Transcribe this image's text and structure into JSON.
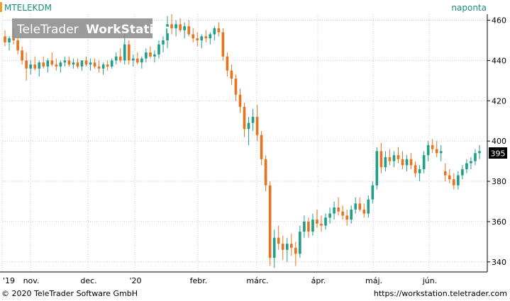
{
  "symbol": "MTELEKDM",
  "period_label": "naponta",
  "watermark": "TeleTrader WorkStation",
  "watermark_parts": [
    "TeleTrader",
    "WorkStation"
  ],
  "last_price_label": "395",
  "footer": {
    "copyright": "© 2020 TeleTrader Software GmbH",
    "url": "https://workstation.teletrader.com"
  },
  "colors": {
    "up": "#1f9e89",
    "down": "#e8731e",
    "grid": "#c9c9c9",
    "symbol_text": "#1a8f7a",
    "accent_bar": "#f0a020"
  },
  "chart_data": {
    "type": "candlestick",
    "x_tick_labels": [
      "'19",
      "nov.",
      "dec.",
      "'20",
      "febr.",
      "márc.",
      "ápr.",
      "máj.",
      "jún."
    ],
    "y_ticks": [
      340,
      360,
      380,
      400,
      420,
      440,
      460
    ],
    "ylim": [
      335,
      463
    ],
    "grid": true,
    "candles": [
      [
        452,
        455,
        447,
        449
      ],
      [
        449,
        452,
        445,
        451
      ],
      [
        451,
        456,
        448,
        450
      ],
      [
        450,
        451,
        443,
        445
      ],
      [
        445,
        447,
        438,
        440
      ],
      [
        440,
        444,
        430,
        436
      ],
      [
        436,
        440,
        433,
        438
      ],
      [
        438,
        442,
        435,
        436
      ],
      [
        436,
        440,
        432,
        439
      ],
      [
        439,
        442,
        436,
        437
      ],
      [
        437,
        441,
        434,
        440
      ],
      [
        440,
        444,
        437,
        438
      ],
      [
        438,
        441,
        435,
        437
      ],
      [
        437,
        440,
        434,
        439
      ],
      [
        439,
        442,
        437,
        440
      ],
      [
        440,
        442,
        437,
        438
      ],
      [
        438,
        441,
        436,
        439
      ],
      [
        439,
        441,
        436,
        437
      ],
      [
        437,
        440,
        435,
        440
      ],
      [
        440,
        442,
        437,
        438
      ],
      [
        438,
        441,
        435,
        439
      ],
      [
        439,
        441,
        436,
        437
      ],
      [
        437,
        440,
        434,
        436
      ],
      [
        436,
        439,
        433,
        438
      ],
      [
        438,
        440,
        435,
        437
      ],
      [
        437,
        441,
        436,
        440
      ],
      [
        440,
        444,
        438,
        442
      ],
      [
        442,
        446,
        439,
        440
      ],
      [
        440,
        456,
        438,
        448
      ],
      [
        448,
        450,
        438,
        440
      ],
      [
        440,
        443,
        437,
        441
      ],
      [
        441,
        444,
        438,
        439
      ],
      [
        439,
        442,
        436,
        441
      ],
      [
        441,
        446,
        439,
        444
      ],
      [
        444,
        447,
        441,
        442
      ],
      [
        442,
        445,
        439,
        443
      ],
      [
        443,
        450,
        441,
        448
      ],
      [
        448,
        452,
        444,
        450
      ],
      [
        450,
        462,
        446,
        458
      ],
      [
        458,
        463,
        453,
        456
      ],
      [
        456,
        460,
        452,
        458
      ],
      [
        458,
        461,
        454,
        455
      ],
      [
        455,
        459,
        451,
        457
      ],
      [
        457,
        460,
        452,
        453
      ],
      [
        453,
        456,
        449,
        451
      ],
      [
        451,
        454,
        447,
        450
      ],
      [
        450,
        453,
        446,
        452
      ],
      [
        452,
        455,
        449,
        451
      ],
      [
        451,
        454,
        448,
        453
      ],
      [
        453,
        457,
        450,
        456
      ],
      [
        456,
        459,
        452,
        454
      ],
      [
        454,
        456,
        440,
        442
      ],
      [
        442,
        444,
        432,
        435
      ],
      [
        435,
        438,
        428,
        431
      ],
      [
        431,
        433,
        420,
        423
      ],
      [
        423,
        426,
        414,
        417
      ],
      [
        417,
        419,
        402,
        406
      ],
      [
        406,
        412,
        398,
        409
      ],
      [
        409,
        416,
        405,
        412
      ],
      [
        412,
        418,
        400,
        403
      ],
      [
        403,
        405,
        388,
        391
      ],
      [
        391,
        393,
        375,
        378
      ],
      [
        378,
        380,
        338,
        342
      ],
      [
        342,
        356,
        337,
        352
      ],
      [
        352,
        358,
        346,
        349
      ],
      [
        349,
        353,
        341,
        346
      ],
      [
        346,
        352,
        340,
        349
      ],
      [
        349,
        354,
        343,
        347
      ],
      [
        347,
        350,
        338,
        344
      ],
      [
        344,
        358,
        342,
        355
      ],
      [
        355,
        363,
        352,
        360
      ],
      [
        360,
        362,
        352,
        355
      ],
      [
        355,
        364,
        353,
        361
      ],
      [
        361,
        366,
        357,
        359
      ],
      [
        359,
        363,
        355,
        358
      ],
      [
        358,
        364,
        356,
        362
      ],
      [
        362,
        367,
        359,
        364
      ],
      [
        364,
        370,
        361,
        367
      ],
      [
        367,
        372,
        363,
        365
      ],
      [
        365,
        368,
        361,
        363
      ],
      [
        363,
        366,
        358,
        361
      ],
      [
        361,
        368,
        359,
        366
      ],
      [
        366,
        372,
        364,
        369
      ],
      [
        369,
        372,
        365,
        366
      ],
      [
        366,
        369,
        362,
        364
      ],
      [
        364,
        373,
        362,
        371
      ],
      [
        371,
        380,
        369,
        378
      ],
      [
        378,
        397,
        376,
        395
      ],
      [
        395,
        399,
        384,
        387
      ],
      [
        387,
        395,
        385,
        392
      ],
      [
        392,
        396,
        388,
        390
      ],
      [
        390,
        395,
        387,
        393
      ],
      [
        393,
        397,
        389,
        391
      ],
      [
        391,
        395,
        386,
        388
      ],
      [
        388,
        393,
        385,
        391
      ],
      [
        391,
        394,
        386,
        388
      ],
      [
        388,
        390,
        382,
        384
      ],
      [
        384,
        388,
        380,
        386
      ],
      [
        386,
        395,
        384,
        393
      ],
      [
        393,
        400,
        390,
        398
      ],
      [
        398,
        401,
        394,
        396
      ],
      [
        396,
        400,
        392,
        394
      ],
      [
        394,
        398,
        390,
        395
      ],
      [
        385,
        389,
        380,
        383
      ],
      [
        383,
        386,
        379,
        381
      ],
      [
        381,
        384,
        376,
        378
      ],
      [
        378,
        385,
        376,
        383
      ],
      [
        383,
        388,
        381,
        386
      ],
      [
        386,
        391,
        384,
        389
      ],
      [
        389,
        392,
        386,
        390
      ],
      [
        390,
        396,
        388,
        394
      ],
      [
        394,
        398,
        391,
        395
      ]
    ]
  }
}
